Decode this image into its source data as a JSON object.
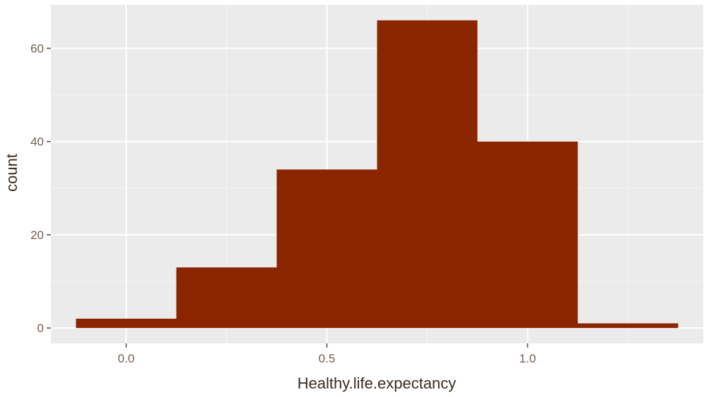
{
  "chart_data": {
    "type": "bar",
    "title": "",
    "xlabel": "Healthy.life.expectancy",
    "ylabel": "count",
    "bin_width": 0.25,
    "bins": [
      {
        "x_start": -0.125,
        "x_end": 0.125,
        "count": 2
      },
      {
        "x_start": 0.125,
        "x_end": 0.375,
        "count": 13
      },
      {
        "x_start": 0.375,
        "x_end": 0.625,
        "count": 34
      },
      {
        "x_start": 0.625,
        "x_end": 0.875,
        "count": 66
      },
      {
        "x_start": 0.875,
        "x_end": 1.125,
        "count": 40
      },
      {
        "x_start": 1.125,
        "x_end": 1.375,
        "count": 1
      }
    ],
    "xlim": [
      -0.1875,
      1.4375
    ],
    "ylim": [
      -3.3,
      69.3
    ],
    "x_ticks": [
      {
        "value": 0,
        "label": "0.0"
      },
      {
        "value": 0.5,
        "label": "0.5"
      },
      {
        "value": 1,
        "label": "1.0"
      }
    ],
    "y_ticks": [
      {
        "value": 0,
        "label": "0"
      },
      {
        "value": 20,
        "label": "20"
      },
      {
        "value": 40,
        "label": "40"
      },
      {
        "value": 60,
        "label": "60"
      }
    ],
    "grid": true,
    "colors": {
      "bar_fill": "#8b2500",
      "panel_background": "#ebebeb",
      "grid_major": "#ffffff",
      "grid_minor": "#f6f6f6"
    }
  }
}
